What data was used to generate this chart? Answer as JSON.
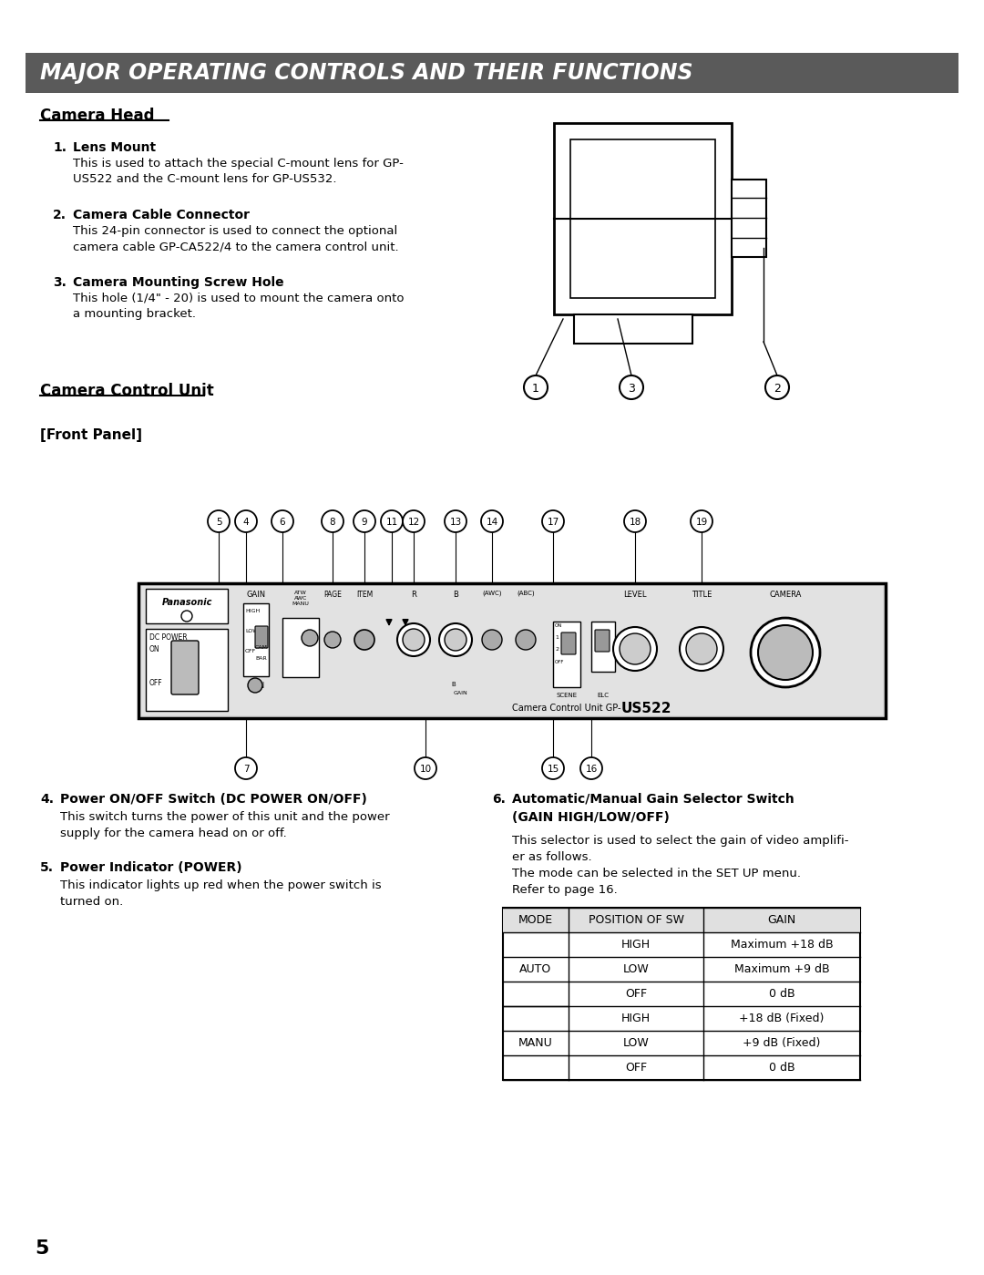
{
  "title": "MAJOR OPERATING CONTROLS AND THEIR FUNCTIONS",
  "title_bg": "#5a5a5a",
  "title_color": "#ffffff",
  "page_bg": "#ffffff",
  "page_number": "5",
  "camera_head_title": "Camera Head",
  "items": [
    {
      "num": "1.",
      "bold": "Lens Mount",
      "text": "This is used to attach the special C-mount lens for GP-\nUS522 and the C-mount lens for GP-US532."
    },
    {
      "num": "2.",
      "bold": "Camera Cable Connector",
      "text": "This 24-pin connector is used to connect the optional\ncamera cable GP-CA522/4 to the camera control unit."
    },
    {
      "num": "3.",
      "bold": "Camera Mounting Screw Hole",
      "text": "This hole (1/4\" - 20) is used to mount the camera onto\na mounting bracket."
    }
  ],
  "ccu_title": "Camera Control Unit",
  "front_panel_label": "[Front Panel]",
  "items2_left": [
    {
      "num": "4.",
      "bold": "Power ON/OFF Switch (DC POWER ON/OFF)",
      "text": "This switch turns the power of this unit and the power\nsupply for the camera head on or off."
    },
    {
      "num": "5.",
      "bold": "Power Indicator (POWER)",
      "text": "This indicator lights up red when the power switch is\nturned on."
    }
  ],
  "items2_right": [
    {
      "num": "6.",
      "bold": "Automatic/Manual Gain Selector Switch\n(GAIN HIGH/LOW/OFF)",
      "text": "This selector is used to select the gain of video amplifi-\ner as follows.\nThe mode can be selected in the SET UP menu.\nRefer to page 16."
    }
  ],
  "table_headers": [
    "MODE",
    "POSITION OF SW",
    "GAIN"
  ],
  "table_rows": [
    [
      "",
      "HIGH",
      "Maximum +18 dB"
    ],
    [
      "AUTO",
      "LOW",
      "Maximum +9 dB"
    ],
    [
      "",
      "OFF",
      "0 dB"
    ],
    [
      "",
      "HIGH",
      "+18 dB (Fixed)"
    ],
    [
      "MANU",
      "LOW",
      "+9 dB (Fixed)"
    ],
    [
      "",
      "OFF",
      "0 dB"
    ]
  ]
}
